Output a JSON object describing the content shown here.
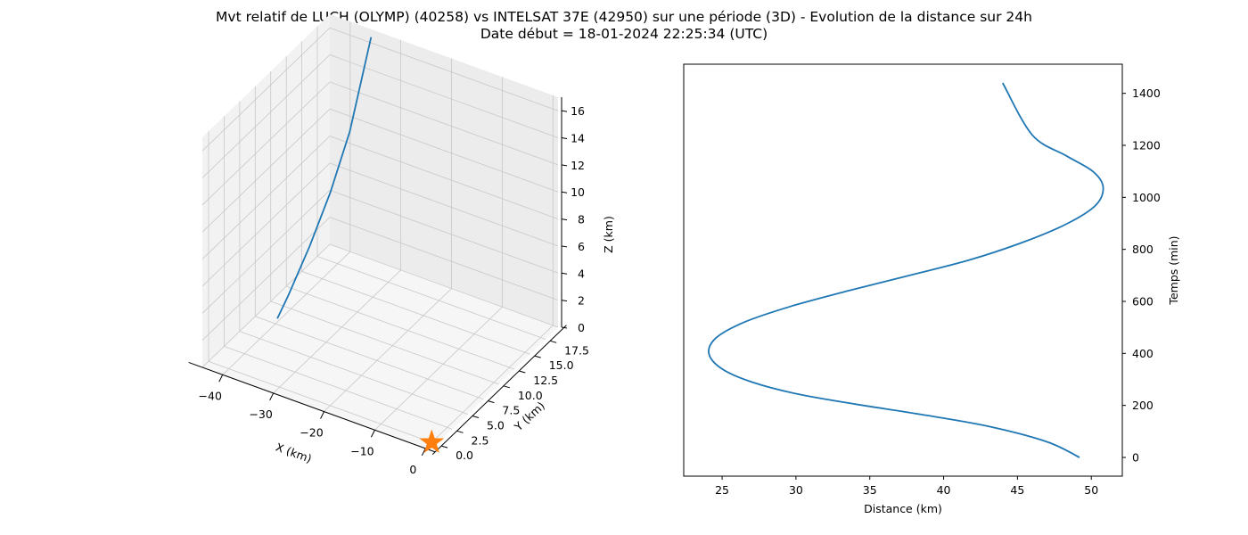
{
  "title": {
    "line1": "Mvt relatif de LUCH (OLYMP) (40258) vs INTELSAT 37E (42950) sur une période (3D) - Evolution de la distance sur 24h",
    "line2": "Date début = 18-01-2024 22:25:34 (UTC)"
  },
  "colors": {
    "trajectory": "#1f77b4",
    "marker": "#ff7f0e",
    "pane_left": "#f2f2f2",
    "pane_right": "#ececec",
    "pane_floor": "#f6f6f6",
    "grid": "#c8c8c8"
  },
  "chart_data": [
    {
      "type": "line3d",
      "title": "",
      "xlabel": "X (km)",
      "ylabel": "Y (km)",
      "zlabel": "Z (km)",
      "xticks": [
        "−40",
        "−30",
        "−20",
        "−10",
        "0"
      ],
      "yticks": [
        "0.0",
        "2.5",
        "5.0",
        "7.5",
        "10.0",
        "12.5",
        "15.0",
        "17.5"
      ],
      "zticks": [
        "0",
        "2",
        "4",
        "6",
        "8",
        "10",
        "12",
        "14",
        "16"
      ],
      "xlim": [
        -44,
        1
      ],
      "ylim": [
        -1,
        19.5
      ],
      "zlim": [
        0,
        17
      ],
      "series": [
        {
          "x": [
            -40.5,
            -40,
            -39,
            -38,
            -37,
            -35.5
          ],
          "y": [
            8.2,
            9.6,
            12.2,
            14.7,
            17.0,
            19.2
          ],
          "z": [
            0.0,
            1.2,
            3.8,
            6.8,
            10.4,
            16.6
          ]
        }
      ],
      "marker": {
        "x": 0,
        "y": 0,
        "z": 0,
        "symbol": "star"
      }
    },
    {
      "type": "line",
      "title": "",
      "xlabel": "Distance (km)",
      "ylabel": "Temps (min)",
      "xticks": [
        25,
        30,
        35,
        40,
        45,
        50
      ],
      "yticks": [
        0,
        200,
        400,
        600,
        800,
        1000,
        1200,
        1400
      ],
      "xlim": [
        22.4,
        52.1
      ],
      "ylim": [
        -72,
        1512
      ],
      "series": [
        {
          "x": [
            49.2,
            47.0,
            43.0,
            38.5,
            34.0,
            30.0,
            27.0,
            25.0,
            24.1,
            24.6,
            26.5,
            29.6,
            33.5,
            37.7,
            41.8,
            45.5,
            48.4,
            50.3,
            50.8,
            50.1,
            48.3,
            46.0,
            44.0
          ],
          "y": [
            0,
            60,
            120,
            165,
            205,
            245,
            290,
            340,
            400,
            460,
            520,
            580,
            640,
            700,
            760,
            830,
            900,
            970,
            1040,
            1100,
            1160,
            1240,
            1440
          ]
        }
      ]
    }
  ]
}
